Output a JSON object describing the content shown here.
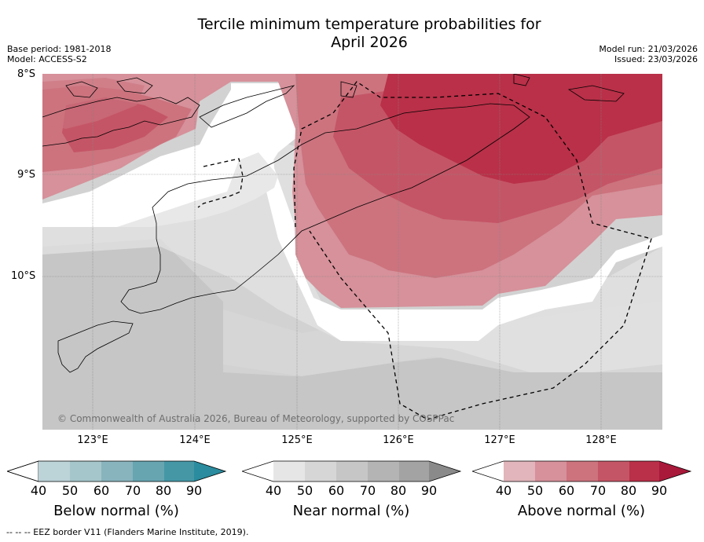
{
  "title_line1": "Tercile minimum temperature probabilities for",
  "title_line2": "April 2026",
  "base_period": "Base period: 1981-2018",
  "model": "Model: ACCESS-S2",
  "model_run": "Model run: 21/03/2026",
  "issued": "Issued: 23/03/2026",
  "lat_labels": [
    "8°S",
    "9°S",
    "10°S"
  ],
  "lon_labels": [
    "123°E",
    "124°E",
    "125°E",
    "126°E",
    "127°E",
    "128°E"
  ],
  "copyright": "© Commonwealth of Australia 2026, Bureau of Meteorology, supported by COSPPac",
  "colorbars": [
    {
      "title": "Below normal (%)",
      "ticks": [
        "40",
        "50",
        "60",
        "70",
        "80",
        "90"
      ],
      "colors": [
        "#bcd3d8",
        "#a5c6cb",
        "#88b4be",
        "#67a5b1",
        "#4597a6",
        "#2a8c9e"
      ]
    },
    {
      "title": "Near normal (%)",
      "ticks": [
        "40",
        "50",
        "60",
        "70",
        "80",
        "90"
      ],
      "colors": [
        "#e6e6e6",
        "#d6d6d6",
        "#c6c6c6",
        "#b4b4b4",
        "#a3a3a3",
        "#8a8a8a"
      ]
    },
    {
      "title": "Above normal (%)",
      "ticks": [
        "40",
        "50",
        "60",
        "70",
        "80",
        "90"
      ],
      "colors": [
        "#e1b5bb",
        "#d6919a",
        "#cc737e",
        "#c45566",
        "#b93048",
        "#a8193a"
      ]
    }
  ],
  "footer": "--  --  -- EEZ border V11 (Flanders Marine Institute, 2019)."
}
